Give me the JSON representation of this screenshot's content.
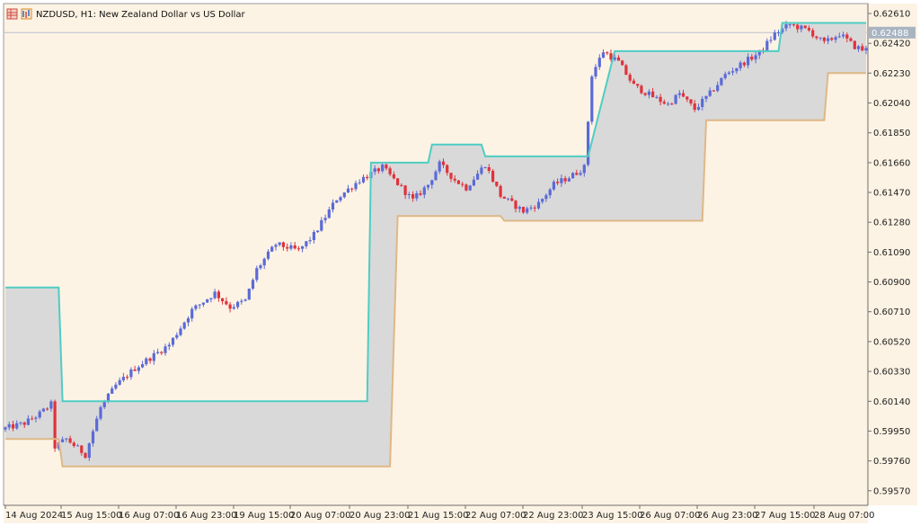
{
  "window": {
    "symbol_title": "NZDUSD, H1:  New Zealand Dollar vs US Dollar",
    "icons": [
      "toolbar-grid-icon",
      "toolbar-chart-icon"
    ]
  },
  "colors": {
    "background": "#fdf3e4",
    "upper_band": "#4ecdc4",
    "lower_band": "#deb887",
    "band_fill": "#d9d9d9",
    "bull_candle": "#5b6ad6",
    "bear_candle": "#e0323c",
    "price_tag": "#a9b4c2"
  },
  "chart_data": {
    "type": "candlestick",
    "ylim": [
      0.595,
      0.6265
    ],
    "y_ticks": [
      "0.62610",
      "0.62420",
      "0.62230",
      "0.62040",
      "0.61850",
      "0.61660",
      "0.61470",
      "0.61280",
      "0.61090",
      "0.60900",
      "0.60710",
      "0.60520",
      "0.60330",
      "0.60140",
      "0.59950",
      "0.59760",
      "0.59570"
    ],
    "x_ticks": [
      "14 Aug 2024",
      "15 Aug 15:00",
      "16 Aug 07:00",
      "16 Aug 23:00",
      "19 Aug 15:00",
      "20 Aug 07:00",
      "20 Aug 23:00",
      "21 Aug 15:00",
      "22 Aug 07:00",
      "22 Aug 23:00",
      "23 Aug 15:00",
      "26 Aug 07:00",
      "26 Aug 23:00",
      "27 Aug 15:00",
      "28 Aug 07:00"
    ],
    "current_price": "0.62488",
    "price_path": [
      [
        0,
        0.5996
      ],
      [
        6,
        0.6
      ],
      [
        10,
        0.6006
      ],
      [
        13,
        0.6012
      ],
      [
        14,
        0.5985
      ],
      [
        17,
        0.599
      ],
      [
        22,
        0.598
      ],
      [
        26,
        0.601
      ],
      [
        30,
        0.6024
      ],
      [
        35,
        0.6035
      ],
      [
        44,
        0.605
      ],
      [
        50,
        0.6072
      ],
      [
        56,
        0.6083
      ],
      [
        60,
        0.6074
      ],
      [
        64,
        0.6078
      ],
      [
        67,
        0.6098
      ],
      [
        72,
        0.6114
      ],
      [
        78,
        0.611
      ],
      [
        82,
        0.612
      ],
      [
        88,
        0.6143
      ],
      [
        94,
        0.6155
      ],
      [
        100,
        0.6163
      ],
      [
        105,
        0.615
      ],
      [
        108,
        0.6142
      ],
      [
        112,
        0.6152
      ],
      [
        115,
        0.6165
      ],
      [
        119,
        0.6155
      ],
      [
        122,
        0.615
      ],
      [
        127,
        0.6165
      ],
      [
        131,
        0.6145
      ],
      [
        137,
        0.6135
      ],
      [
        141,
        0.614
      ],
      [
        145,
        0.6152
      ],
      [
        150,
        0.6158
      ],
      [
        153,
        0.6163
      ],
      [
        155,
        0.6222
      ],
      [
        158,
        0.6237
      ],
      [
        162,
        0.623
      ],
      [
        166,
        0.6215
      ],
      [
        171,
        0.6208
      ],
      [
        175,
        0.6203
      ],
      [
        178,
        0.621
      ],
      [
        182,
        0.62
      ],
      [
        186,
        0.621
      ],
      [
        190,
        0.6222
      ],
      [
        195,
        0.623
      ],
      [
        199,
        0.6236
      ],
      [
        203,
        0.6248
      ],
      [
        207,
        0.6254
      ],
      [
        212,
        0.625
      ],
      [
        216,
        0.6242
      ],
      [
        220,
        0.6248
      ],
      [
        224,
        0.624
      ],
      [
        226,
        0.6238
      ]
    ],
    "upper_band": [
      [
        0,
        0.60865
      ],
      [
        14,
        0.60865
      ],
      [
        15,
        0.6014
      ],
      [
        95,
        0.6014
      ],
      [
        96,
        0.6166
      ],
      [
        111,
        0.6166
      ],
      [
        112,
        0.61775
      ],
      [
        125,
        0.61775
      ],
      [
        126,
        0.617
      ],
      [
        153,
        0.617
      ],
      [
        160,
        0.6237
      ],
      [
        203,
        0.6237
      ],
      [
        204,
        0.6255
      ],
      [
        226,
        0.6255
      ]
    ],
    "lower_band": [
      [
        0,
        0.599
      ],
      [
        14,
        0.599
      ],
      [
        15,
        0.59725
      ],
      [
        101,
        0.59725
      ],
      [
        103,
        0.6132
      ],
      [
        130,
        0.6132
      ],
      [
        131,
        0.6129
      ],
      [
        183,
        0.6129
      ],
      [
        184,
        0.6193
      ],
      [
        215,
        0.6193
      ],
      [
        216,
        0.6223
      ],
      [
        226,
        0.6223
      ]
    ]
  }
}
